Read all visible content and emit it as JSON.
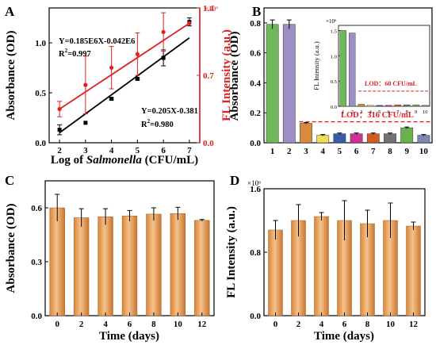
{
  "colors": {
    "black": "#000000",
    "red": "#e02020",
    "axis_red": "#e02020",
    "lod_red": "#e02020",
    "orange_top": "#f2b87e",
    "orange_mid": "#e8954a",
    "orange_dark": "#c8772f",
    "bar_colors_B": [
      "#6fb85a",
      "#9d8ec6",
      "#d98a3c",
      "#f2dc5a",
      "#3a5ba8",
      "#d0308f",
      "#d45a25",
      "#6f7378",
      "#68b24d",
      "#7e86b8"
    ]
  },
  "chart_data": [
    {
      "panel_label": "A",
      "type": "line",
      "xlabel_prefix": "Log of ",
      "xlabel_italic": "Salmonella",
      "xlabel_suffix": " (CFU/mL)",
      "ylabel_left": "Absorbance (OD)",
      "ylabel_right": "FL Intensity (a.u.)",
      "right_multiplier": "×10⁶",
      "x_ticks": [
        "2",
        "3",
        "4",
        "5",
        "6",
        "7"
      ],
      "y_left_ticks": [
        "0.0",
        "0.5",
        "1.0"
      ],
      "y_right_ticks": [
        "0.0",
        "0.7",
        "1.4"
      ],
      "xlim": [
        1.6,
        7.4
      ],
      "ylim_left": [
        0,
        1.35
      ],
      "ylim_right": [
        0,
        1.4
      ],
      "series": [
        {
          "axis": "left",
          "x": [
            2,
            3,
            4,
            5,
            6,
            7
          ],
          "y": [
            0.13,
            0.2,
            0.44,
            0.64,
            0.85,
            1.21
          ],
          "err": [
            0.05,
            0,
            0.01,
            0.01,
            0.08,
            0.04
          ],
          "fit": [
            0.1,
            1.05
          ]
        },
        {
          "axis": "right",
          "x": [
            2,
            3,
            4,
            5,
            6,
            7
          ],
          "y": [
            0.35,
            0.6,
            0.78,
            0.92,
            1.15,
            1.24
          ],
          "err": [
            0.08,
            0.3,
            0.22,
            0.22,
            0.2,
            0
          ],
          "fit": [
            0.35,
            1.24
          ]
        }
      ],
      "equation_red": "Y=0.185E6X-0.042E6",
      "r2_red_base": "R",
      "r2_red_sup": "2",
      "r2_red_value": "=0.997",
      "equation_black": "Y=0.205X-0.381",
      "r2_black_base": "R",
      "r2_black_sup": "2",
      "r2_black_value": "=0.980"
    },
    {
      "panel_label": "B",
      "type": "bar",
      "ylabel": "Absorbance (OD)",
      "categories": [
        "1",
        "2",
        "3",
        "4",
        "5",
        "6",
        "7",
        "8",
        "9",
        "10"
      ],
      "values": [
        0.79,
        0.79,
        0.13,
        0.05,
        0.06,
        0.06,
        0.06,
        0.06,
        0.1,
        0.05
      ],
      "err": [
        0.03,
        0.03,
        0.005,
        0.005,
        0.005,
        0.005,
        0.005,
        0.005,
        0.005,
        0.005
      ],
      "ylim": [
        0,
        0.9
      ],
      "y_ticks": [
        "0.0",
        "0.2",
        "0.4",
        "0.6",
        "0.8"
      ],
      "lod_value": 0.14,
      "lod_label": "LOD：316 CFU/mL",
      "inset": {
        "ylabel": "FL Intensity (a.u.)",
        "multiplier": "×10⁶",
        "categories": [
          "1",
          "2",
          "3",
          "4",
          "5",
          "6",
          "7",
          "8",
          "9",
          "10"
        ],
        "values": [
          1.5,
          1.45,
          0.04,
          0.02,
          0.02,
          0.02,
          0.03,
          0.03,
          0.03,
          0.02
        ],
        "ylim": [
          0,
          1.6
        ],
        "y_ticks": [
          "0.0",
          "0.5",
          "1.0",
          "1.5"
        ],
        "lod_value": 0.3,
        "lod_label": "LOD：60 CFU/mL"
      }
    },
    {
      "panel_label": "C",
      "type": "bar",
      "xlabel": "Time (days)",
      "ylabel": "Absorbance (OD)",
      "categories": [
        "0",
        "2",
        "4",
        "6",
        "8",
        "10",
        "12"
      ],
      "values": [
        0.6,
        0.545,
        0.55,
        0.555,
        0.565,
        0.568,
        0.53
      ],
      "err": [
        0.075,
        0.05,
        0.045,
        0.03,
        0.035,
        0.035,
        0.005
      ],
      "ylim": [
        0,
        0.75
      ],
      "y_ticks": [
        "0.0",
        "0.3",
        "0.6"
      ]
    },
    {
      "panel_label": "D",
      "type": "bar",
      "xlabel": "Time (days)",
      "ylabel": "FL Intensity (a.u.)",
      "multiplier": "×10⁶",
      "categories": [
        "0",
        "2",
        "4",
        "6",
        "8",
        "10",
        "12"
      ],
      "values": [
        1.08,
        1.2,
        1.25,
        1.2,
        1.16,
        1.2,
        1.13
      ],
      "err": [
        0.12,
        0.2,
        0.05,
        0.25,
        0.17,
        0.22,
        0.05
      ],
      "ylim": [
        0,
        1.6
      ],
      "y_ticks": [
        "0.0",
        "0.8",
        "1.6"
      ]
    }
  ]
}
